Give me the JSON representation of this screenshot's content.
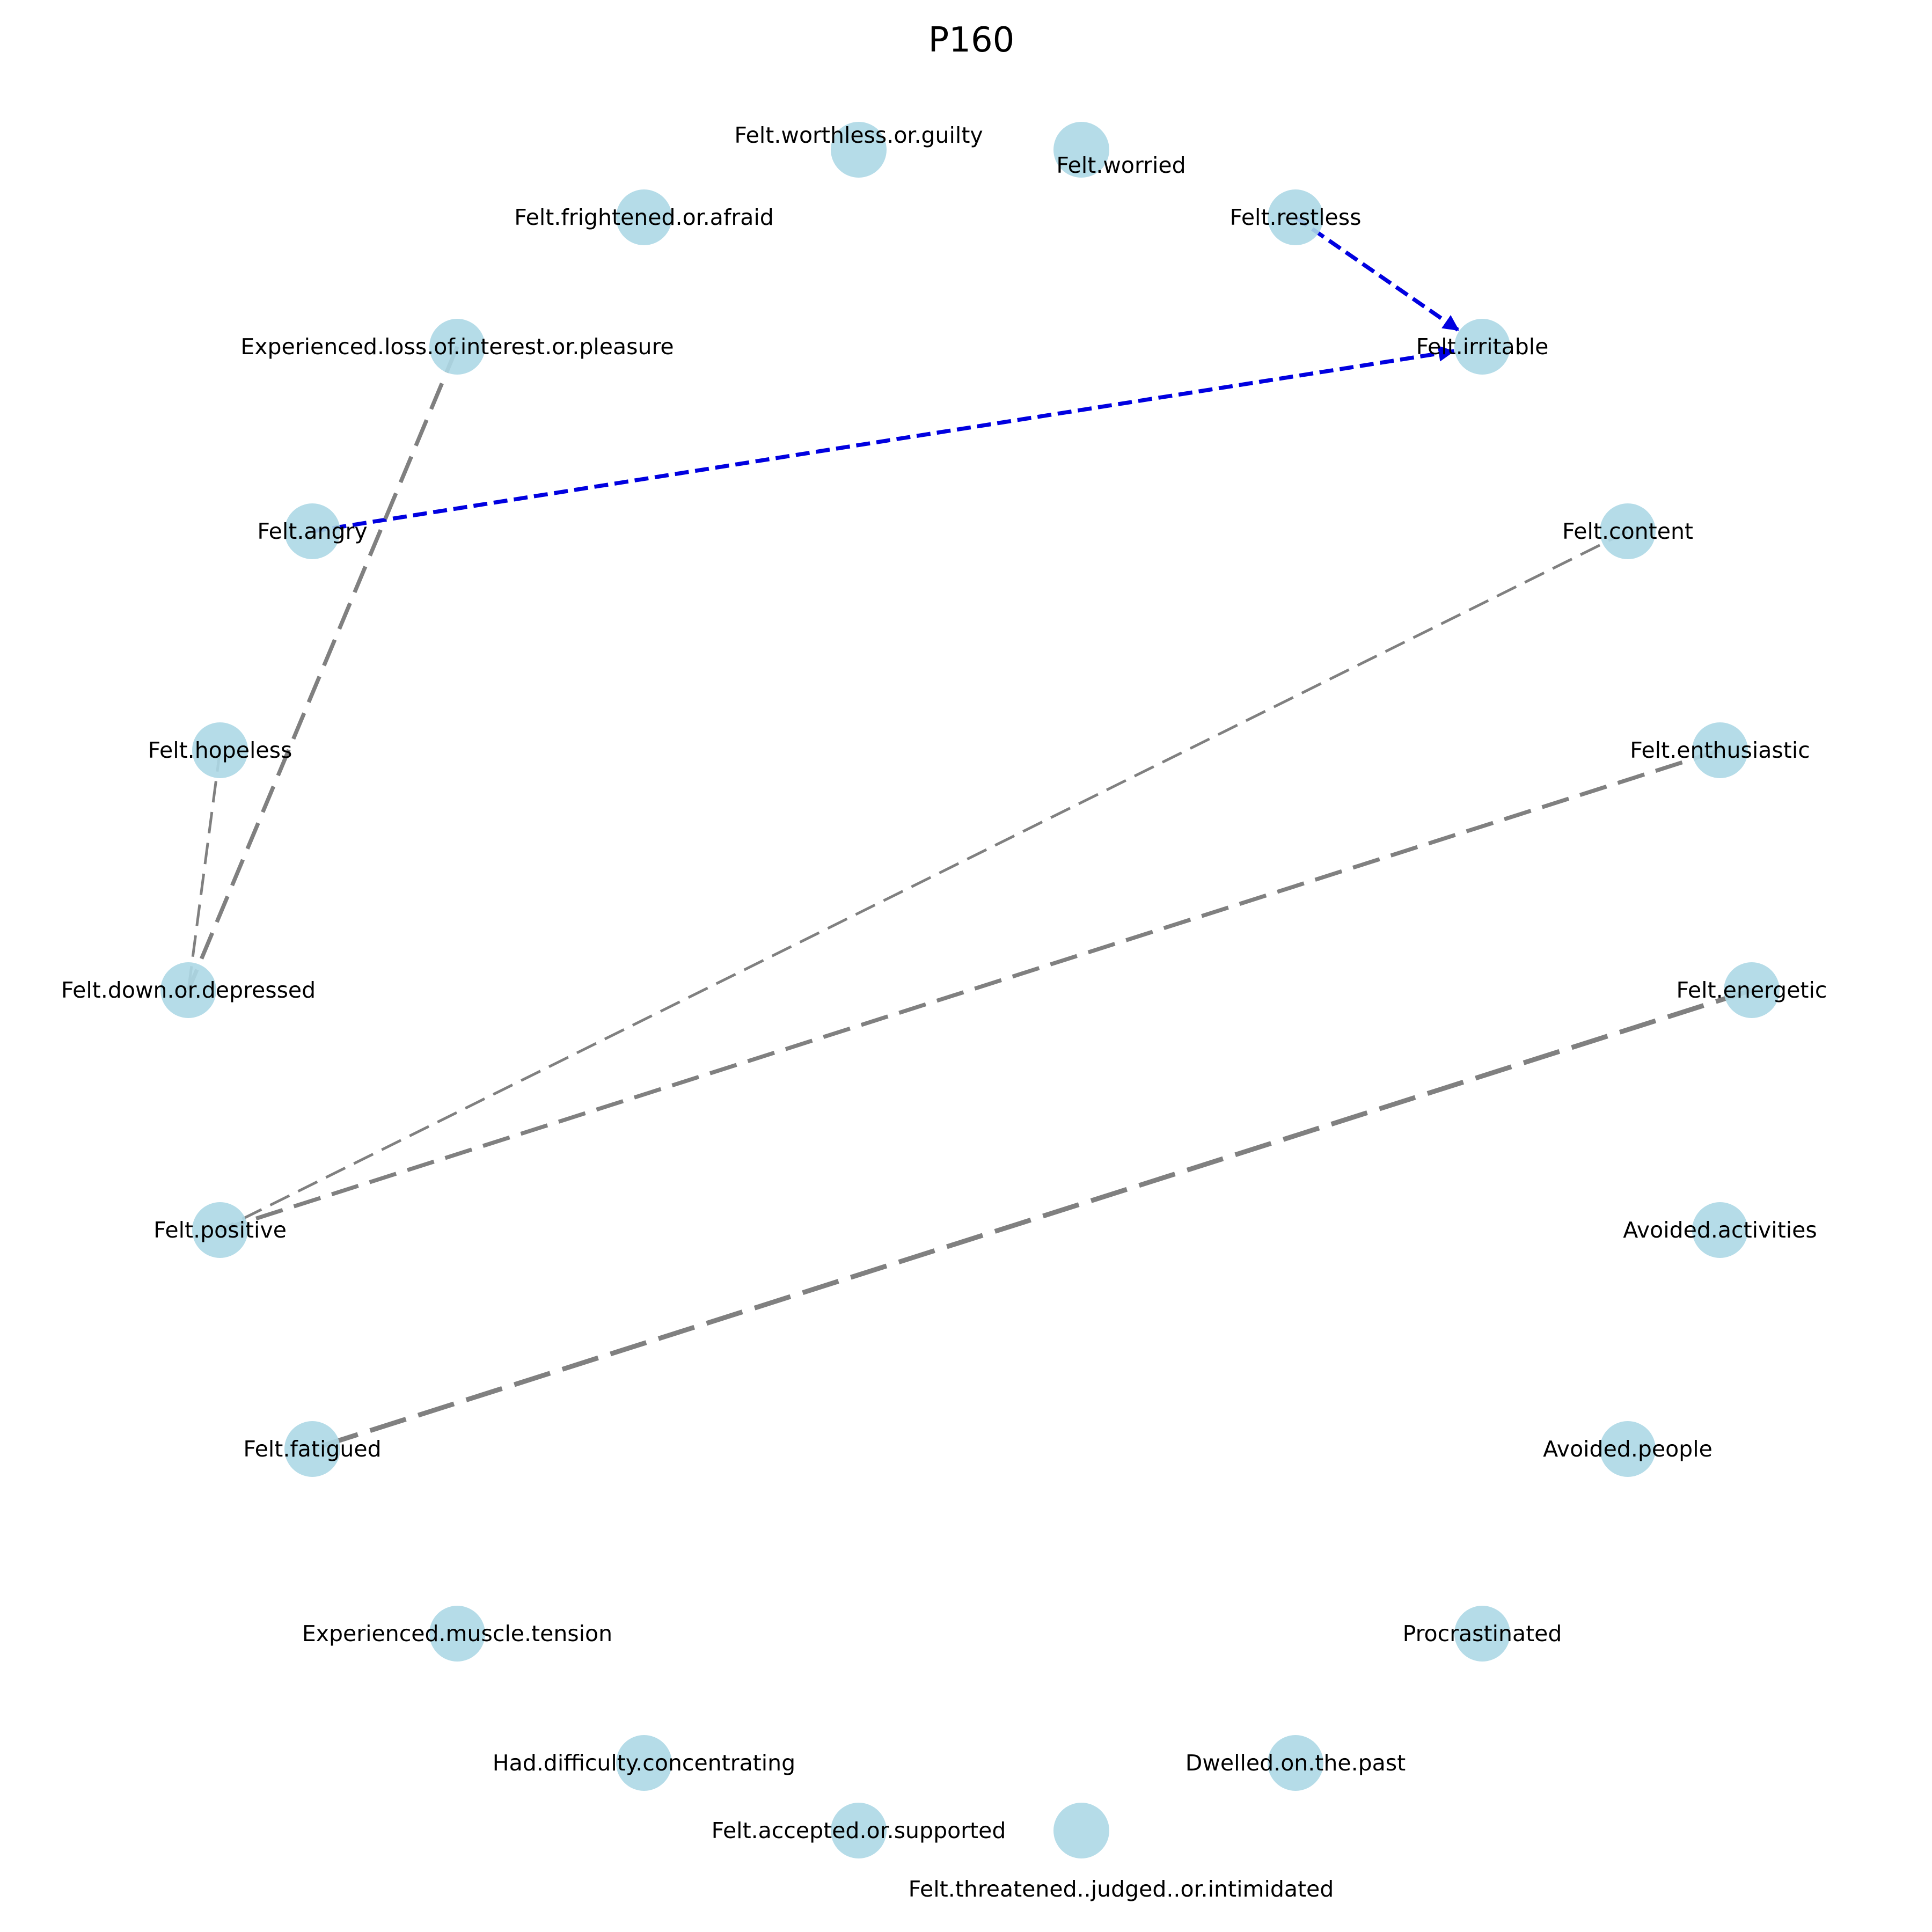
{
  "title": "P160",
  "colors": {
    "node_fill": "#add8e6",
    "edge_undirected": "#808080",
    "edge_directed": "#0000e0",
    "background": "#ffffff"
  },
  "nodes": [
    {
      "id": "worthless",
      "label": "Felt.worthless.or.guilty"
    },
    {
      "id": "worried",
      "label": "Felt.worried"
    },
    {
      "id": "frightened",
      "label": "Felt.frightened.or.afraid"
    },
    {
      "id": "restless",
      "label": "Felt.restless"
    },
    {
      "id": "loss_interest",
      "label": "Experienced.loss.of.interest.or.pleasure"
    },
    {
      "id": "irritable",
      "label": "Felt.irritable"
    },
    {
      "id": "angry",
      "label": "Felt.angry"
    },
    {
      "id": "content",
      "label": "Felt.content"
    },
    {
      "id": "hopeless",
      "label": "Felt.hopeless"
    },
    {
      "id": "enthusiastic",
      "label": "Felt.enthusiastic"
    },
    {
      "id": "down",
      "label": "Felt.down.or.depressed"
    },
    {
      "id": "energetic",
      "label": "Felt.energetic"
    },
    {
      "id": "positive",
      "label": "Felt.positive"
    },
    {
      "id": "avoided_activities",
      "label": "Avoided.activities"
    },
    {
      "id": "fatigued",
      "label": "Felt.fatigued"
    },
    {
      "id": "avoided_people",
      "label": "Avoided.people"
    },
    {
      "id": "muscle",
      "label": "Experienced.muscle.tension"
    },
    {
      "id": "procrastinated",
      "label": "Procrastinated"
    },
    {
      "id": "concentrating",
      "label": "Had.difficulty.concentrating"
    },
    {
      "id": "dwelled",
      "label": "Dwelled.on.the.past"
    },
    {
      "id": "accepted",
      "label": "Felt.accepted.or.supported"
    },
    {
      "id": "threatened",
      "label": "Felt.threatened..judged..or.intimidated"
    }
  ],
  "edges": [
    {
      "source": "restless",
      "target": "irritable",
      "directed": true
    },
    {
      "source": "angry",
      "target": "irritable",
      "directed": true
    },
    {
      "source": "loss_interest",
      "target": "down",
      "directed": false
    },
    {
      "source": "hopeless",
      "target": "down",
      "directed": false
    },
    {
      "source": "content",
      "target": "positive",
      "directed": false
    },
    {
      "source": "enthusiastic",
      "target": "positive",
      "directed": false
    },
    {
      "source": "energetic",
      "target": "fatigued",
      "directed": false
    }
  ]
}
